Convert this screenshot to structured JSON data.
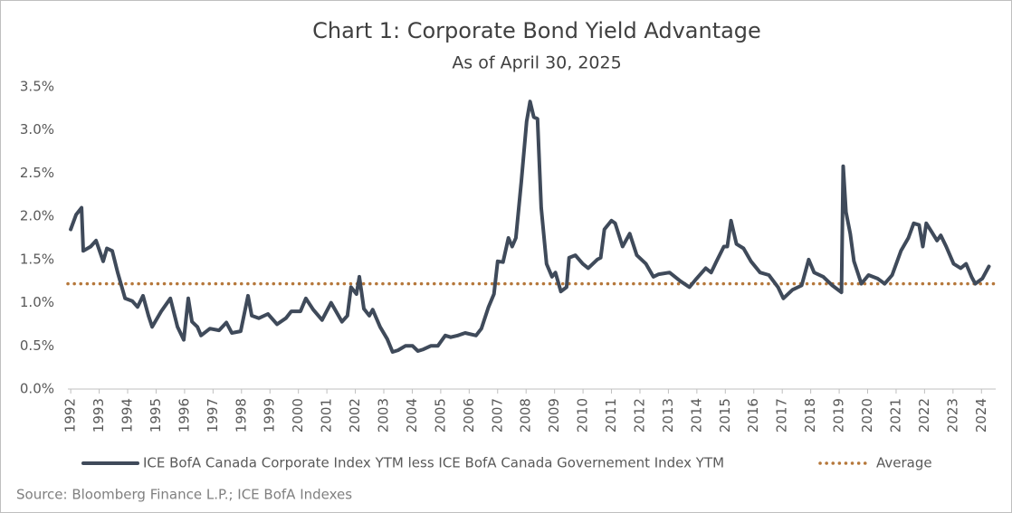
{
  "chart_data": {
    "type": "line",
    "title": "Chart 1: Corporate Bond Yield Advantage",
    "subtitle": "As of April 30, 2025",
    "source": "Source: Bloomberg Finance L.P.; ICE BofA Indexes",
    "x": [
      1992.0,
      1992.19,
      1992.38,
      1992.44,
      1992.7,
      1992.89,
      1993.14,
      1993.27,
      1993.46,
      1993.65,
      1993.91,
      1994.16,
      1994.35,
      1994.54,
      1994.73,
      1994.86,
      1995.18,
      1995.5,
      1995.75,
      1995.97,
      1996.13,
      1996.26,
      1996.45,
      1996.58,
      1996.89,
      1997.21,
      1997.47,
      1997.66,
      1997.97,
      1998.23,
      1998.36,
      1998.61,
      1998.93,
      1999.25,
      1999.56,
      1999.75,
      2000.07,
      2000.26,
      2000.52,
      2000.83,
      2001.15,
      2001.53,
      2001.72,
      2001.85,
      2002.04,
      2002.14,
      2002.3,
      2002.49,
      2002.61,
      2002.87,
      2003.12,
      2003.31,
      2003.5,
      2003.76,
      2004.01,
      2004.2,
      2004.39,
      2004.65,
      2004.9,
      2005.16,
      2005.35,
      2005.6,
      2005.86,
      2006.24,
      2006.43,
      2006.68,
      2006.87,
      2007.0,
      2007.19,
      2007.38,
      2007.51,
      2007.64,
      2007.83,
      2008.02,
      2008.14,
      2008.27,
      2008.4,
      2008.53,
      2008.72,
      2008.91,
      2009.03,
      2009.22,
      2009.42,
      2009.51,
      2009.73,
      2009.99,
      2010.18,
      2010.5,
      2010.62,
      2010.75,
      2011.0,
      2011.13,
      2011.39,
      2011.64,
      2011.89,
      2012.21,
      2012.47,
      2012.66,
      2013.04,
      2013.42,
      2013.74,
      2013.99,
      2014.31,
      2014.5,
      2014.69,
      2014.95,
      2015.07,
      2015.2,
      2015.39,
      2015.64,
      2015.9,
      2016.22,
      2016.53,
      2016.85,
      2017.04,
      2017.36,
      2017.68,
      2017.93,
      2018.12,
      2018.44,
      2018.76,
      2019.08,
      2019.14,
      2019.24,
      2019.39,
      2019.52,
      2019.78,
      2020.03,
      2020.35,
      2020.6,
      2020.86,
      2021.17,
      2021.43,
      2021.62,
      2021.81,
      2021.94,
      2022.06,
      2022.25,
      2022.44,
      2022.57,
      2022.76,
      2023.02,
      2023.27,
      2023.46,
      2023.65,
      2023.78,
      2024.03,
      2024.26
    ],
    "series": [
      {
        "name": "ICE BofA Canada Corporate Index YTM less ICE BofA Canada Governement Index YTM",
        "color": "#3f4a5a",
        "values": [
          1.85,
          2.02,
          2.1,
          1.6,
          1.65,
          1.72,
          1.48,
          1.63,
          1.6,
          1.35,
          1.05,
          1.02,
          0.95,
          1.08,
          0.85,
          0.72,
          0.9,
          1.05,
          0.72,
          0.57,
          1.05,
          0.78,
          0.72,
          0.62,
          0.7,
          0.68,
          0.77,
          0.65,
          0.67,
          1.08,
          0.85,
          0.82,
          0.87,
          0.75,
          0.82,
          0.9,
          0.9,
          1.05,
          0.92,
          0.8,
          1.0,
          0.78,
          0.85,
          1.18,
          1.1,
          1.3,
          0.93,
          0.85,
          0.92,
          0.72,
          0.58,
          0.43,
          0.45,
          0.5,
          0.5,
          0.44,
          0.46,
          0.5,
          0.5,
          0.62,
          0.6,
          0.62,
          0.65,
          0.62,
          0.7,
          0.95,
          1.1,
          1.48,
          1.47,
          1.75,
          1.65,
          1.75,
          2.4,
          3.1,
          3.33,
          3.15,
          3.13,
          2.1,
          1.45,
          1.3,
          1.35,
          1.13,
          1.18,
          1.52,
          1.55,
          1.45,
          1.4,
          1.5,
          1.52,
          1.85,
          1.95,
          1.92,
          1.65,
          1.8,
          1.55,
          1.45,
          1.3,
          1.33,
          1.35,
          1.25,
          1.18,
          1.28,
          1.4,
          1.35,
          1.48,
          1.65,
          1.65,
          1.95,
          1.68,
          1.63,
          1.48,
          1.35,
          1.32,
          1.18,
          1.05,
          1.15,
          1.2,
          1.5,
          1.35,
          1.3,
          1.2,
          1.12,
          2.58,
          2.05,
          1.8,
          1.48,
          1.22,
          1.32,
          1.28,
          1.22,
          1.32,
          1.6,
          1.75,
          1.92,
          1.9,
          1.65,
          1.92,
          1.82,
          1.72,
          1.78,
          1.65,
          1.45,
          1.4,
          1.45,
          1.3,
          1.22,
          1.28,
          1.42
        ]
      }
    ],
    "average": {
      "name": "Average",
      "value": 1.22,
      "color": "#b5773a"
    },
    "xlim": [
      1991.9,
      2024.5
    ],
    "xticks": [
      1992,
      1993,
      1994,
      1995,
      1996,
      1997,
      1998,
      1999,
      2000,
      2001,
      2002,
      2003,
      2004,
      2005,
      2006,
      2007,
      2008,
      2009,
      2010,
      2011,
      2012,
      2013,
      2014,
      2015,
      2016,
      2017,
      2018,
      2019,
      2020,
      2021,
      2022,
      2023,
      2024
    ],
    "ylim": [
      0,
      3.5
    ],
    "yticks": [
      {
        "value": 0,
        "label": "0.0%"
      },
      {
        "value": 0.5,
        "label": "0.5%"
      },
      {
        "value": 1,
        "label": "1.0%"
      },
      {
        "value": 1.5,
        "label": "1.5%"
      },
      {
        "value": 2,
        "label": "2.0%"
      },
      {
        "value": 2.5,
        "label": "2.5%"
      },
      {
        "value": 3,
        "label": "3.0%"
      },
      {
        "value": 3.5,
        "label": "3.5%"
      }
    ],
    "grid": false
  }
}
